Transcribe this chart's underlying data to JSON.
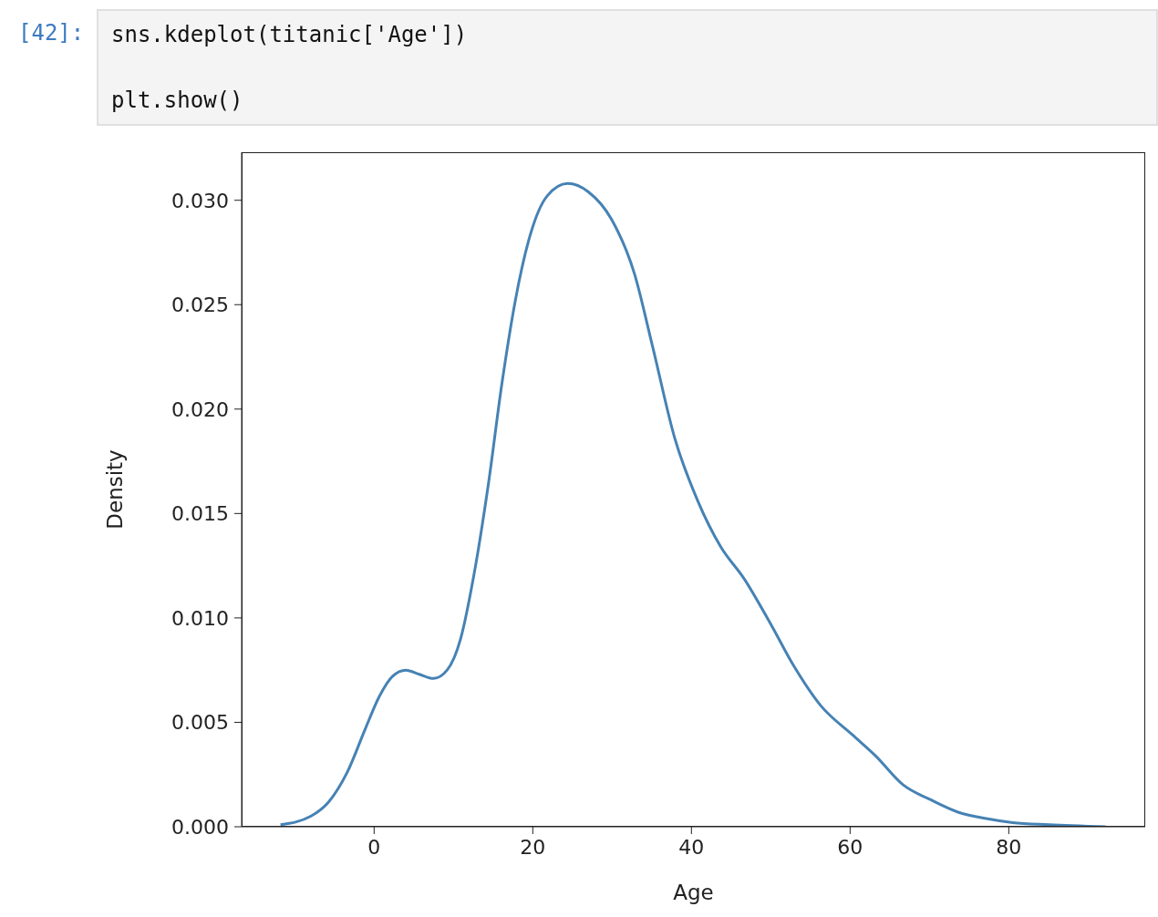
{
  "chart_data": {
    "type": "line",
    "xlabel": "Age",
    "ylabel": "Density",
    "annotations": [
      "[42]:",
      "sns.kdeplot(titanic['Age'])",
      "plt.show()"
    ],
    "xlim": [
      -16.7,
      97.2
    ],
    "ylim": [
      0,
      0.0323
    ],
    "xticks": [
      0,
      20,
      40,
      60,
      80
    ],
    "yticks": [
      {
        "value": 0,
        "label": "0.000"
      },
      {
        "value": 0.005,
        "label": "0.005"
      },
      {
        "value": 0.01,
        "label": "0.010"
      },
      {
        "value": 0.015,
        "label": "0.015"
      },
      {
        "value": 0.02,
        "label": "0.020"
      },
      {
        "value": 0.025,
        "label": "0.025"
      },
      {
        "value": 0.03,
        "label": "0.030"
      }
    ],
    "grid": false,
    "legend": false,
    "marker": "none",
    "line_style": "solid",
    "series": [
      {
        "color": "#4682b4",
        "x": [
          -11.8,
          -8.0,
          -5.7,
          -3.4,
          -1.1,
          0.6,
          2.3,
          4.0,
          5.7,
          7.5,
          9.2,
          10.9,
          12.6,
          14.4,
          16.1,
          17.8,
          19.5,
          21.8,
          24.4,
          27.0,
          29.9,
          32.8,
          35.1,
          37.9,
          40.8,
          43.7,
          46.6,
          50.0,
          52.9,
          56.3,
          60.3,
          63.2,
          66.7,
          70.1,
          73.6,
          77.0,
          80.5,
          85.1,
          92.2
        ],
        "values": [
          0.0001,
          0.0005,
          0.0012,
          0.0026,
          0.0047,
          0.0062,
          0.0072,
          0.0075,
          0.0073,
          0.0071,
          0.0075,
          0.009,
          0.0121,
          0.0164,
          0.0212,
          0.0252,
          0.0281,
          0.0302,
          0.0308,
          0.0304,
          0.0291,
          0.0265,
          0.023,
          0.0186,
          0.0156,
          0.0134,
          0.0119,
          0.0097,
          0.0077,
          0.0058,
          0.0044,
          0.0034,
          0.002,
          0.0013,
          0.0007,
          0.0004,
          0.0002,
          0.0001,
          0.0
        ]
      }
    ]
  }
}
